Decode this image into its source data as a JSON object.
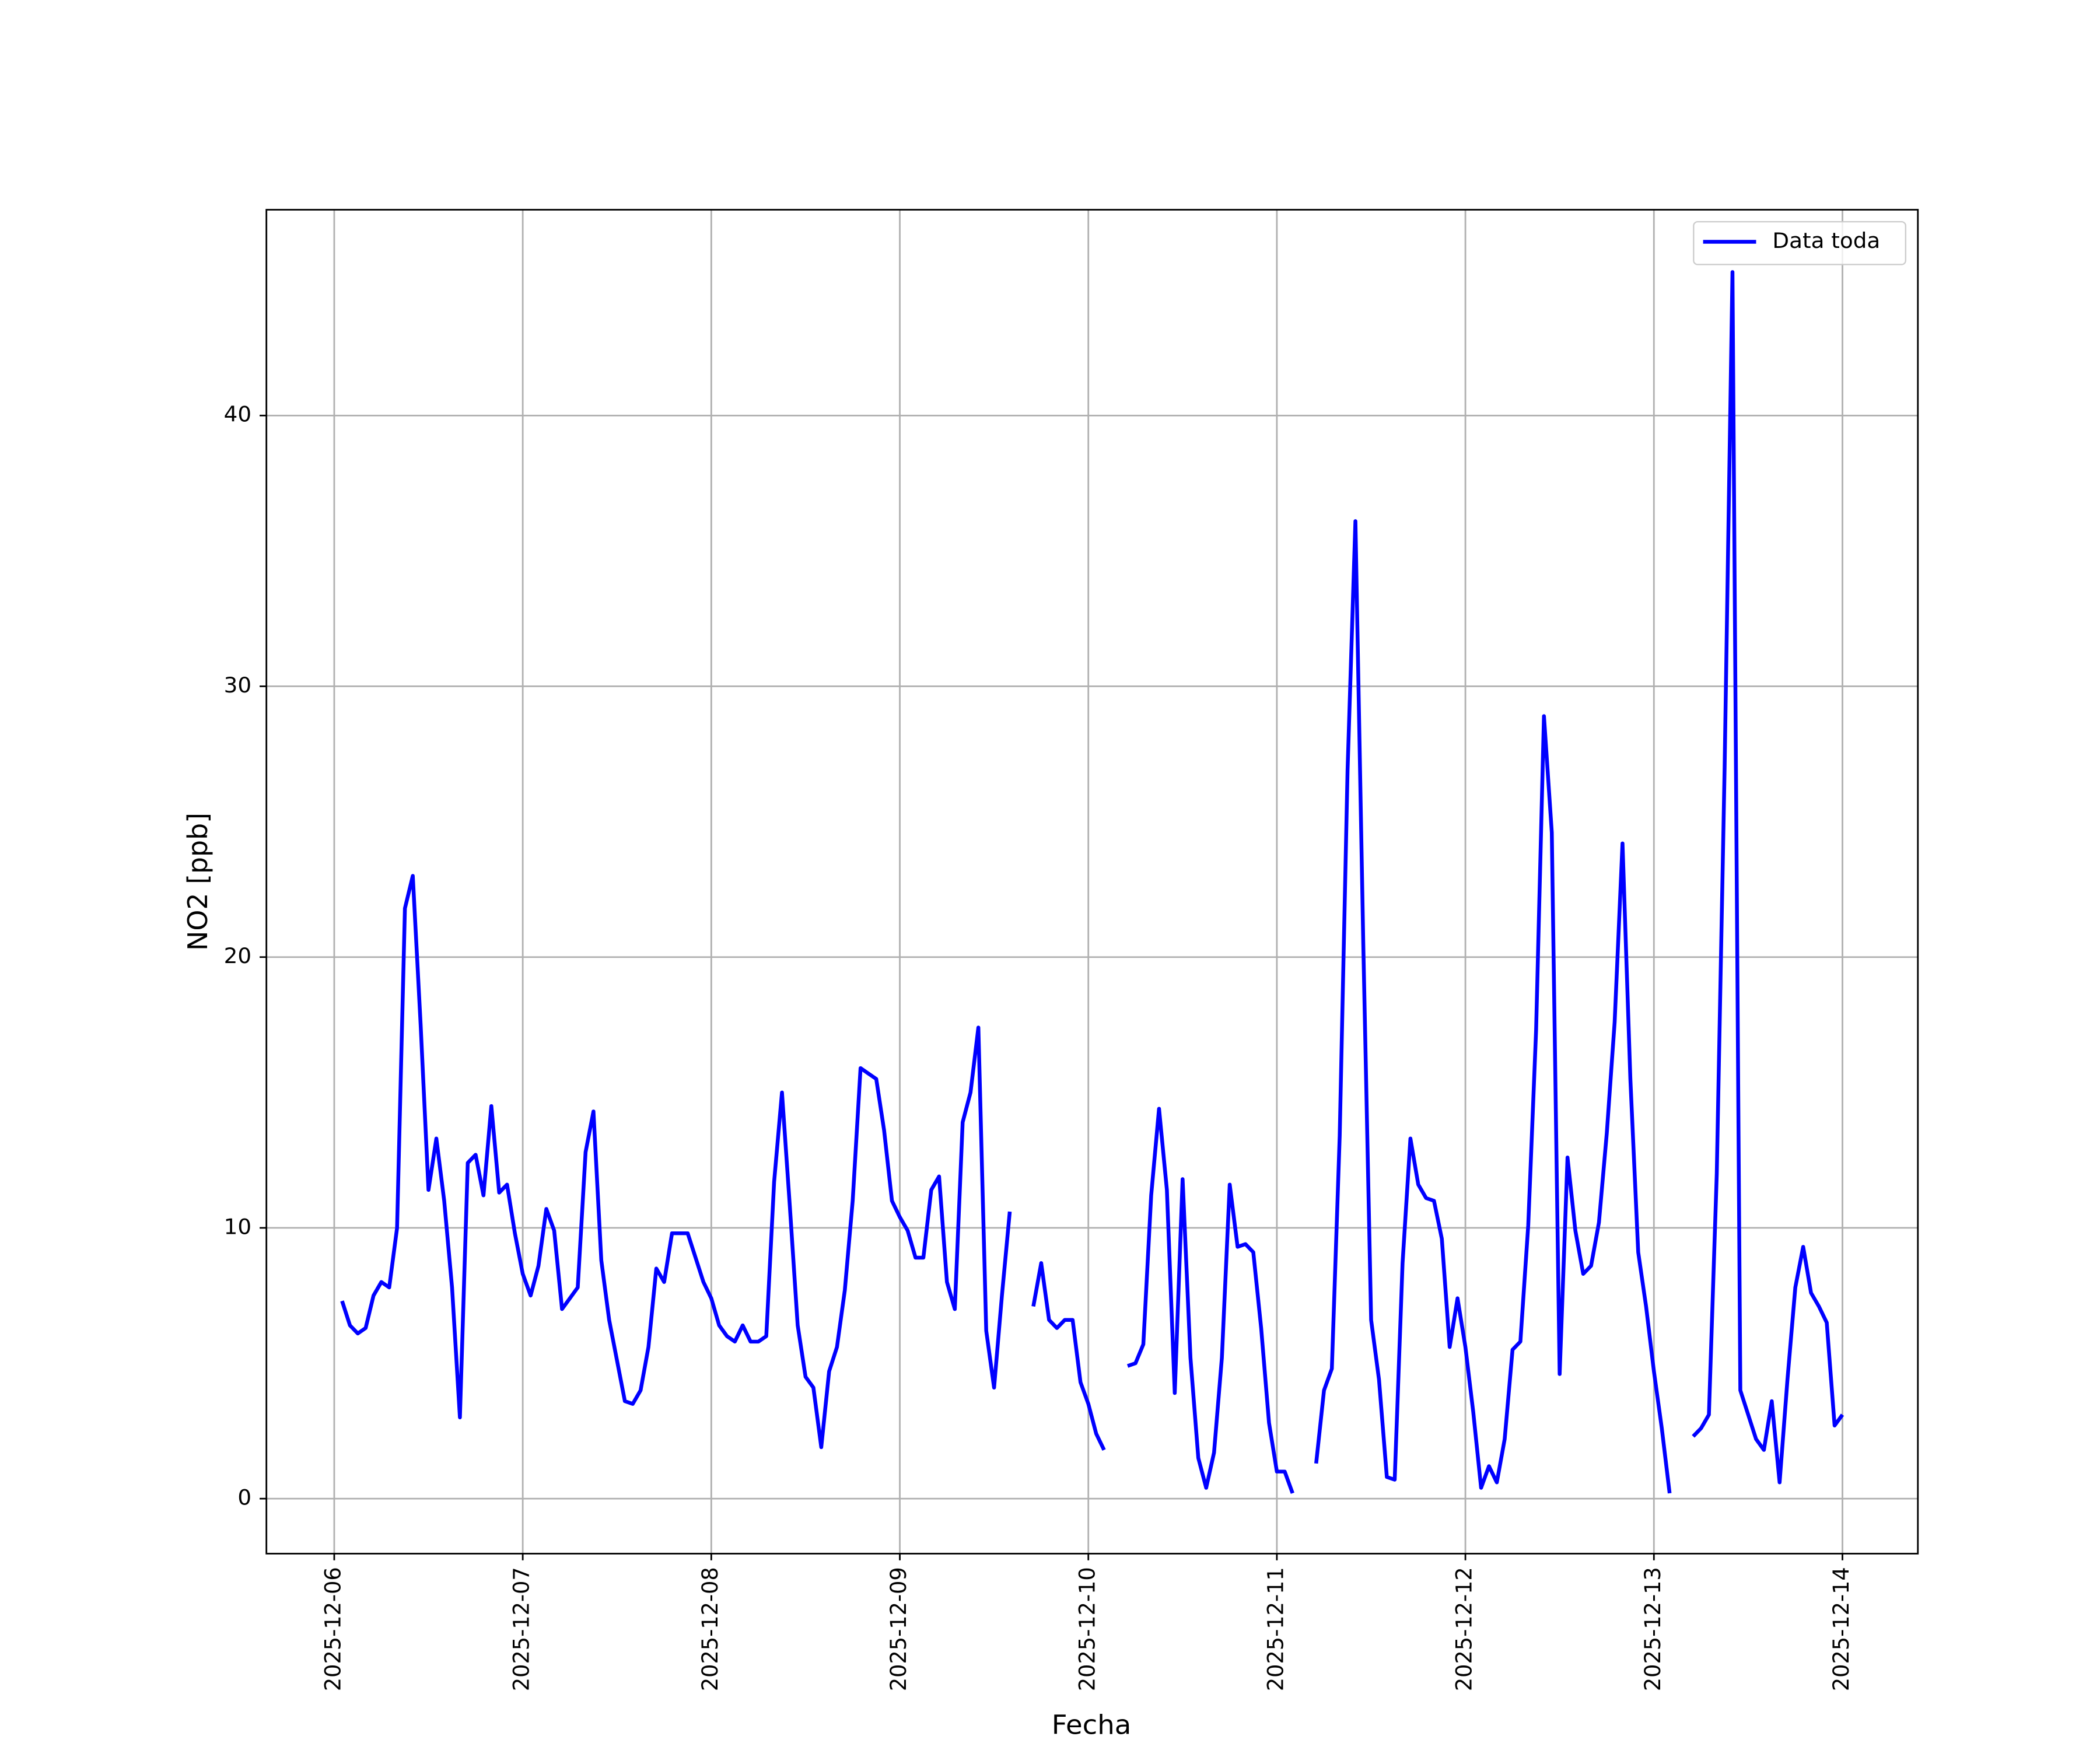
{
  "chart_data": {
    "type": "line",
    "xlabel": "Fecha",
    "ylabel": "NO2 [ppb]",
    "x": [
      "2025-12-06T01:00",
      "2025-12-06T02:00",
      "2025-12-06T03:00",
      "2025-12-06T04:00",
      "2025-12-06T05:00",
      "2025-12-06T06:00",
      "2025-12-06T07:00",
      "2025-12-06T08:00",
      "2025-12-06T09:00",
      "2025-12-06T10:00",
      "2025-12-06T11:00",
      "2025-12-06T12:00",
      "2025-12-06T13:00",
      "2025-12-06T14:00",
      "2025-12-06T15:00",
      "2025-12-06T16:00",
      "2025-12-06T17:00",
      "2025-12-06T18:00",
      "2025-12-06T19:00",
      "2025-12-06T20:00",
      "2025-12-06T21:00",
      "2025-12-06T22:00",
      "2025-12-06T23:00",
      "2025-12-07T00:00",
      "2025-12-07T01:00",
      "2025-12-07T02:00",
      "2025-12-07T03:00",
      "2025-12-07T04:00",
      "2025-12-07T05:00",
      "2025-12-07T06:00",
      "2025-12-07T07:00",
      "2025-12-07T08:00",
      "2025-12-07T09:00",
      "2025-12-07T10:00",
      "2025-12-07T11:00",
      "2025-12-07T12:00",
      "2025-12-07T13:00",
      "2025-12-07T14:00",
      "2025-12-07T15:00",
      "2025-12-07T16:00",
      "2025-12-07T17:00",
      "2025-12-07T18:00",
      "2025-12-07T19:00",
      "2025-12-07T20:00",
      "2025-12-07T21:00",
      "2025-12-07T22:00",
      "2025-12-07T23:00",
      "2025-12-08T00:00",
      "2025-12-08T01:00",
      "2025-12-08T02:00",
      "2025-12-08T03:00",
      "2025-12-08T04:00",
      "2025-12-08T05:00",
      "2025-12-08T06:00",
      "2025-12-08T07:00",
      "2025-12-08T08:00",
      "2025-12-08T09:00",
      "2025-12-08T10:00",
      "2025-12-08T11:00",
      "2025-12-08T12:00",
      "2025-12-08T13:00",
      "2025-12-08T14:00",
      "2025-12-08T15:00",
      "2025-12-08T16:00",
      "2025-12-08T17:00",
      "2025-12-08T18:00",
      "2025-12-08T19:00",
      "2025-12-08T20:00",
      "2025-12-08T21:00",
      "2025-12-08T22:00",
      "2025-12-08T23:00",
      "2025-12-09T00:00",
      "2025-12-09T01:00",
      "2025-12-09T02:00",
      "2025-12-09T03:00",
      "2025-12-09T04:00",
      "2025-12-09T05:00",
      "2025-12-09T06:00",
      "2025-12-09T07:00",
      "2025-12-09T08:00",
      "2025-12-09T09:00",
      "2025-12-09T10:00",
      "2025-12-09T11:00",
      "2025-12-09T12:00",
      "2025-12-09T13:00",
      "2025-12-09T14:00",
      "2025-12-09T15:00",
      "2025-12-09T16:00",
      "2025-12-09T17:00",
      "2025-12-09T18:00",
      "2025-12-09T19:00",
      "2025-12-09T20:00",
      "2025-12-09T21:00",
      "2025-12-09T22:00",
      "2025-12-09T23:00",
      "2025-12-10T00:00",
      "2025-12-10T01:00",
      "2025-12-10T02:00",
      "2025-12-10T03:00",
      "2025-12-10T04:00",
      "2025-12-10T05:00",
      "2025-12-10T06:00",
      "2025-12-10T07:00",
      "2025-12-10T08:00",
      "2025-12-10T09:00",
      "2025-12-10T10:00",
      "2025-12-10T11:00",
      "2025-12-10T12:00",
      "2025-12-10T13:00",
      "2025-12-10T14:00",
      "2025-12-10T15:00",
      "2025-12-10T16:00",
      "2025-12-10T17:00",
      "2025-12-10T18:00",
      "2025-12-10T19:00",
      "2025-12-10T20:00",
      "2025-12-10T21:00",
      "2025-12-10T22:00",
      "2025-12-10T23:00",
      "2025-12-11T00:00",
      "2025-12-11T01:00",
      "2025-12-11T02:00",
      "2025-12-11T03:00",
      "2025-12-11T04:00",
      "2025-12-11T05:00",
      "2025-12-11T06:00",
      "2025-12-11T07:00",
      "2025-12-11T08:00",
      "2025-12-11T09:00",
      "2025-12-11T10:00",
      "2025-12-11T11:00",
      "2025-12-11T12:00",
      "2025-12-11T13:00",
      "2025-12-11T14:00",
      "2025-12-11T15:00",
      "2025-12-11T16:00",
      "2025-12-11T17:00",
      "2025-12-11T18:00",
      "2025-12-11T19:00",
      "2025-12-11T20:00",
      "2025-12-11T21:00",
      "2025-12-11T22:00",
      "2025-12-11T23:00",
      "2025-12-12T00:00",
      "2025-12-12T01:00",
      "2025-12-12T02:00",
      "2025-12-12T03:00",
      "2025-12-12T04:00",
      "2025-12-12T05:00",
      "2025-12-12T06:00",
      "2025-12-12T07:00",
      "2025-12-12T08:00",
      "2025-12-12T09:00",
      "2025-12-12T10:00",
      "2025-12-12T11:00",
      "2025-12-12T12:00",
      "2025-12-12T13:00",
      "2025-12-12T14:00",
      "2025-12-12T15:00",
      "2025-12-12T16:00",
      "2025-12-12T17:00",
      "2025-12-12T18:00",
      "2025-12-12T19:00",
      "2025-12-12T20:00",
      "2025-12-12T21:00",
      "2025-12-12T22:00",
      "2025-12-12T23:00",
      "2025-12-13T00:00",
      "2025-12-13T01:00",
      "2025-12-13T02:00",
      "2025-12-13T03:00",
      "2025-12-13T04:00",
      "2025-12-13T05:00",
      "2025-12-13T06:00",
      "2025-12-13T07:00",
      "2025-12-13T08:00",
      "2025-12-13T09:00",
      "2025-12-13T10:00",
      "2025-12-13T11:00",
      "2025-12-13T12:00",
      "2025-12-13T13:00",
      "2025-12-13T14:00",
      "2025-12-13T15:00",
      "2025-12-13T16:00",
      "2025-12-13T17:00",
      "2025-12-13T18:00",
      "2025-12-13T19:00",
      "2025-12-13T20:00",
      "2025-12-13T21:00",
      "2025-12-13T22:00",
      "2025-12-13T23:00",
      "2025-12-14T00:00"
    ],
    "series": [
      {
        "name": "Data toda",
        "color": "#0000ff",
        "values": [
          7.3,
          6.4,
          6.1,
          6.3,
          7.5,
          8.0,
          7.8,
          10.0,
          21.8,
          23.0,
          17.5,
          11.4,
          13.3,
          11.0,
          7.8,
          3.0,
          12.4,
          12.7,
          11.2,
          14.5,
          11.3,
          11.6,
          9.8,
          8.3,
          7.5,
          8.6,
          10.7,
          9.9,
          7.0,
          7.4,
          7.8,
          12.8,
          14.3,
          8.8,
          6.6,
          5.1,
          3.6,
          3.5,
          4.0,
          5.6,
          8.5,
          8.0,
          9.8,
          9.8,
          9.8,
          8.9,
          8.0,
          7.4,
          6.4,
          6.0,
          5.8,
          6.4,
          5.8,
          5.8,
          6.0,
          11.7,
          15.0,
          10.8,
          6.4,
          4.5,
          4.1,
          1.9,
          4.7,
          5.6,
          7.7,
          11.0,
          15.9,
          15.7,
          15.5,
          13.6,
          11.0,
          10.4,
          9.9,
          8.9,
          8.9,
          11.4,
          11.9,
          8.0,
          7.0,
          13.9,
          15.0,
          17.4,
          6.2,
          4.1,
          7.5,
          10.6,
          null,
          null,
          7.1,
          8.7,
          6.6,
          6.3,
          6.6,
          6.6,
          4.3,
          3.5,
          2.4,
          1.8,
          null,
          null,
          4.9,
          5.0,
          5.7,
          11.2,
          14.4,
          11.4,
          3.9,
          11.8,
          5.2,
          1.5,
          0.4,
          1.7,
          5.2,
          11.6,
          9.3,
          9.4,
          9.1,
          6.3,
          2.8,
          1.0,
          1.0,
          0.2,
          null,
          null,
          1.3,
          4.0,
          4.8,
          13.4,
          26.9,
          36.1,
          20.5,
          6.6,
          4.4,
          0.8,
          0.7,
          8.7,
          13.3,
          11.6,
          11.1,
          11.0,
          9.6,
          5.6,
          7.4,
          5.6,
          3.2,
          0.4,
          1.2,
          0.6,
          2.2,
          5.5,
          5.8,
          10.1,
          17.3,
          28.9,
          24.6,
          4.6,
          12.6,
          9.9,
          8.3,
          8.6,
          10.2,
          13.5,
          17.6,
          24.2,
          15.5,
          9.1,
          7.1,
          4.7,
          2.6,
          0.2,
          null,
          null,
          2.3,
          2.6,
          3.1,
          12.0,
          27.0,
          45.3,
          4.0,
          3.1,
          2.2,
          1.8,
          3.6,
          0.6,
          4.4,
          7.8,
          9.3,
          7.6,
          7.1,
          6.5,
          2.7,
          3.1
        ]
      }
    ],
    "xlim": [
      "2025-12-05T15:22",
      "2025-12-14T09:36"
    ],
    "xticks": [
      "2025-12-06",
      "2025-12-07",
      "2025-12-08",
      "2025-12-09",
      "2025-12-10",
      "2025-12-11",
      "2025-12-12",
      "2025-12-13",
      "2025-12-14"
    ],
    "ylim": [
      -2.03,
      47.6
    ],
    "yticks": [
      0,
      10,
      20,
      30,
      40
    ],
    "grid": true,
    "legend": "upper right"
  }
}
